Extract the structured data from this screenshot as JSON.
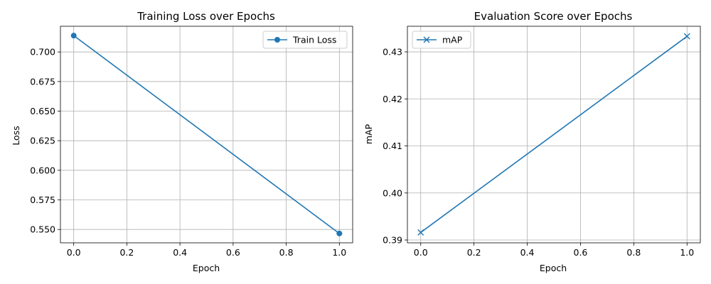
{
  "chart_data": [
    {
      "type": "line",
      "title": "Training Loss over Epochs",
      "xlabel": "Epoch",
      "ylabel": "Loss",
      "xlim": [
        -0.05,
        1.05
      ],
      "ylim": [
        0.5387,
        0.7217
      ],
      "xticks": [
        0.0,
        0.2,
        0.4,
        0.6,
        0.8,
        1.0
      ],
      "xtick_labels": [
        "0.0",
        "0.2",
        "0.4",
        "0.6",
        "0.8",
        "1.0"
      ],
      "yticks": [
        0.55,
        0.575,
        0.6,
        0.625,
        0.65,
        0.675,
        0.7
      ],
      "ytick_labels": [
        "0.550",
        "0.575",
        "0.600",
        "0.625",
        "0.650",
        "0.675",
        "0.700"
      ],
      "grid": true,
      "legend_position": "top-right",
      "series": [
        {
          "name": "Train Loss",
          "marker": "circle",
          "color": "#1f77b4",
          "x": [
            0,
            1
          ],
          "y": [
            0.7138,
            0.5466
          ]
        }
      ]
    },
    {
      "type": "line",
      "title": "Evaluation Score over Epochs",
      "xlabel": "Epoch",
      "ylabel": "mAP",
      "xlim": [
        -0.05,
        1.05
      ],
      "ylim": [
        0.3894,
        0.43544
      ],
      "xticks": [
        0.0,
        0.2,
        0.4,
        0.6,
        0.8,
        1.0
      ],
      "xtick_labels": [
        "0.0",
        "0.2",
        "0.4",
        "0.6",
        "0.8",
        "1.0"
      ],
      "yticks": [
        0.39,
        0.4,
        0.41,
        0.42,
        0.43
      ],
      "ytick_labels": [
        "0.39",
        "0.40",
        "0.41",
        "0.42",
        "0.43"
      ],
      "grid": true,
      "legend_position": "top-left",
      "series": [
        {
          "name": "mAP",
          "marker": "x",
          "color": "#1f77b4",
          "x": [
            0,
            1
          ],
          "y": [
            0.3916,
            0.4333
          ]
        }
      ]
    }
  ]
}
